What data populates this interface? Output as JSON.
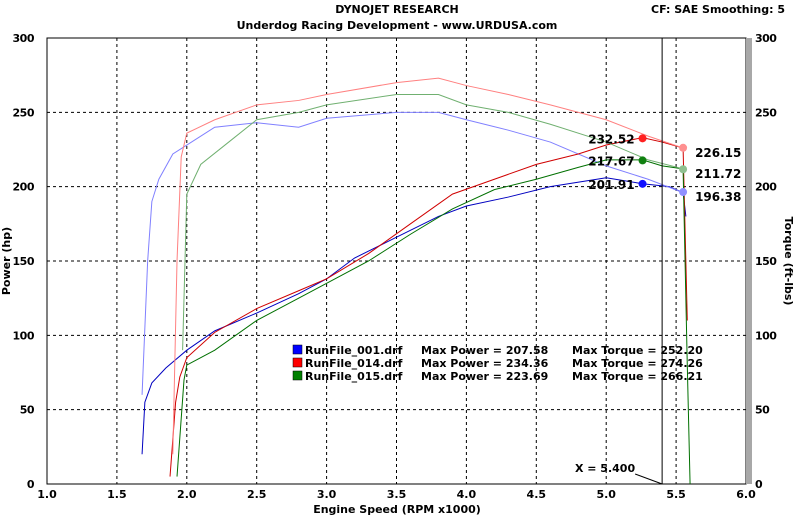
{
  "chart_data": {
    "type": "line",
    "title": "DYNOJET RESEARCH",
    "subtitle": "Underdog Racing Development - www.URDUSA.com",
    "settings": "CF: SAE  Smoothing: 5",
    "xlabel": "Engine Speed (RPM x1000)",
    "ylabel": "Power (hp)",
    "y2label": "Torque (ft-lbs)",
    "xlim": [
      1.0,
      6.0
    ],
    "ylim": [
      0,
      300
    ],
    "y2lim": [
      0,
      300
    ],
    "xticks": [
      "1.0",
      "1.5",
      "2.0",
      "2.5",
      "3.0",
      "3.5",
      "4.0",
      "4.5",
      "5.0",
      "5.5",
      "6.0"
    ],
    "yticks": [
      "0",
      "50",
      "100",
      "150",
      "200",
      "250",
      "300"
    ],
    "grid": true,
    "cursor": {
      "x": 5.4,
      "label": "X = 5.400"
    },
    "legend": [
      {
        "file": "RunFile_001.drf",
        "power": "Max Power = 207.58",
        "torque": "Max Torque = 252.20",
        "color": "#0000ff"
      },
      {
        "file": "RunFile_014.drf",
        "power": "Max Power = 234.36",
        "torque": "Max Torque = 274.26",
        "color": "#ff0000"
      },
      {
        "file": "RunFile_015.drf",
        "power": "Max Power = 223.69",
        "torque": "Max Torque = 266.21",
        "color": "#008000"
      }
    ],
    "markers": [
      {
        "x": 5.26,
        "y": 232.52,
        "label": "232.52",
        "color": "#ff2020",
        "side": "left"
      },
      {
        "x": 5.26,
        "y": 217.67,
        "label": "217.67",
        "color": "#108010",
        "side": "left"
      },
      {
        "x": 5.26,
        "y": 201.91,
        "label": "201.91",
        "color": "#1010ff",
        "side": "left"
      },
      {
        "x": 5.55,
        "y": 226.15,
        "label": "226.15",
        "color": "#ff9090",
        "side": "right"
      },
      {
        "x": 5.55,
        "y": 211.72,
        "label": "211.72",
        "color": "#90c090",
        "side": "right"
      },
      {
        "x": 5.55,
        "y": 196.38,
        "label": "196.38",
        "color": "#9090ff",
        "side": "right"
      }
    ],
    "series": [
      {
        "name": "RunFile_001.drf power",
        "color": "#0000c0",
        "points": [
          [
            1.68,
            20
          ],
          [
            1.7,
            55
          ],
          [
            1.75,
            68
          ],
          [
            1.85,
            78
          ],
          [
            2.0,
            90
          ],
          [
            2.2,
            103
          ],
          [
            2.5,
            115
          ],
          [
            2.8,
            128
          ],
          [
            3.0,
            138
          ],
          [
            3.2,
            152
          ],
          [
            3.5,
            166
          ],
          [
            3.8,
            180
          ],
          [
            4.0,
            187
          ],
          [
            4.3,
            193
          ],
          [
            4.6,
            200
          ],
          [
            5.0,
            206
          ],
          [
            5.26,
            202
          ],
          [
            5.45,
            200
          ],
          [
            5.55,
            196
          ],
          [
            5.57,
            180
          ]
        ]
      },
      {
        "name": "RunFile_001.drf torque",
        "color": "#8080ff",
        "points": [
          [
            1.68,
            60
          ],
          [
            1.72,
            150
          ],
          [
            1.75,
            190
          ],
          [
            1.8,
            205
          ],
          [
            1.9,
            222
          ],
          [
            2.0,
            228
          ],
          [
            2.2,
            240
          ],
          [
            2.5,
            243
          ],
          [
            2.8,
            240
          ],
          [
            3.0,
            246
          ],
          [
            3.5,
            250
          ],
          [
            3.8,
            250
          ],
          [
            4.0,
            245
          ],
          [
            4.3,
            238
          ],
          [
            4.6,
            230
          ],
          [
            5.0,
            214
          ],
          [
            5.3,
            205
          ],
          [
            5.55,
            196
          ]
        ]
      },
      {
        "name": "RunFile_014.drf power",
        "color": "#d00000",
        "points": [
          [
            1.88,
            5
          ],
          [
            1.92,
            55
          ],
          [
            1.95,
            72
          ],
          [
            2.0,
            85
          ],
          [
            2.2,
            102
          ],
          [
            2.5,
            118
          ],
          [
            2.8,
            130
          ],
          [
            3.0,
            138
          ],
          [
            3.3,
            155
          ],
          [
            3.6,
            175
          ],
          [
            3.9,
            195
          ],
          [
            4.2,
            205
          ],
          [
            4.5,
            215
          ],
          [
            4.8,
            222
          ],
          [
            5.0,
            228
          ],
          [
            5.26,
            233
          ],
          [
            5.4,
            230
          ],
          [
            5.55,
            226
          ],
          [
            5.58,
            110
          ]
        ]
      },
      {
        "name": "RunFile_014.drf torque",
        "color": "#ff8080",
        "points": [
          [
            1.9,
            20
          ],
          [
            1.93,
            150
          ],
          [
            1.96,
            220
          ],
          [
            2.0,
            236
          ],
          [
            2.2,
            245
          ],
          [
            2.5,
            255
          ],
          [
            2.8,
            258
          ],
          [
            3.0,
            262
          ],
          [
            3.5,
            270
          ],
          [
            3.8,
            273
          ],
          [
            4.0,
            268
          ],
          [
            4.3,
            262
          ],
          [
            4.6,
            255
          ],
          [
            5.0,
            245
          ],
          [
            5.3,
            234
          ],
          [
            5.55,
            226
          ]
        ]
      },
      {
        "name": "RunFile_015.drf power",
        "color": "#007000",
        "points": [
          [
            1.93,
            5
          ],
          [
            1.98,
            70
          ],
          [
            2.0,
            80
          ],
          [
            2.2,
            90
          ],
          [
            2.5,
            110
          ],
          [
            2.8,
            125
          ],
          [
            3.0,
            135
          ],
          [
            3.3,
            150
          ],
          [
            3.6,
            168
          ],
          [
            3.9,
            185
          ],
          [
            4.2,
            198
          ],
          [
            4.5,
            205
          ],
          [
            4.8,
            213
          ],
          [
            5.0,
            218
          ],
          [
            5.26,
            218
          ],
          [
            5.4,
            214
          ],
          [
            5.55,
            212
          ],
          [
            5.58,
            80
          ],
          [
            5.6,
            0
          ]
        ]
      },
      {
        "name": "RunFile_015.drf torque",
        "color": "#70b070",
        "points": [
          [
            1.97,
            90
          ],
          [
            2.0,
            195
          ],
          [
            2.1,
            215
          ],
          [
            2.3,
            230
          ],
          [
            2.5,
            245
          ],
          [
            2.8,
            250
          ],
          [
            3.0,
            255
          ],
          [
            3.5,
            262
          ],
          [
            3.8,
            262
          ],
          [
            4.0,
            255
          ],
          [
            4.3,
            250
          ],
          [
            4.6,
            242
          ],
          [
            5.0,
            230
          ],
          [
            5.3,
            218
          ],
          [
            5.55,
            212
          ]
        ]
      }
    ]
  }
}
